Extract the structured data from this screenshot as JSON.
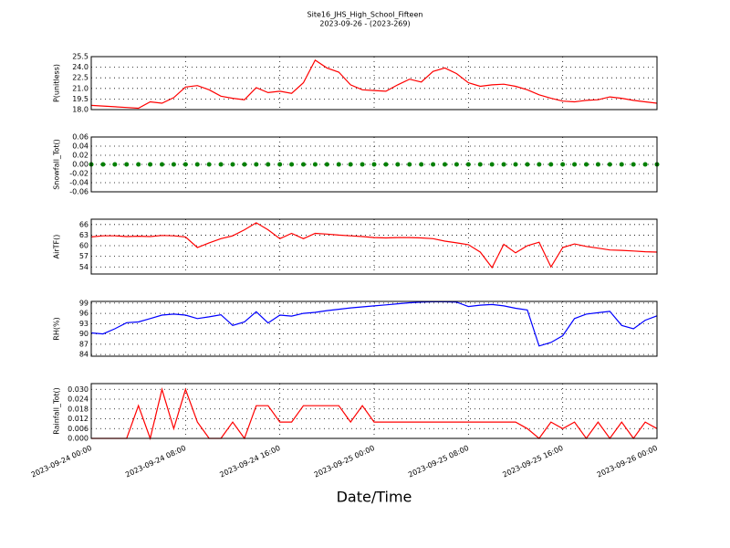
{
  "chart_data": [
    {
      "type": "line",
      "title": "Site16_JHS_High_School_Fifteen",
      "subtitle": "2023-09-26 - (2023-269)",
      "ylabel": "P(unitless)",
      "color": "#ff0000",
      "grid": true,
      "xlim": [
        "2023-09-24 00:00",
        "2023-09-26 00:00"
      ],
      "x": [
        "2023-09-24 00:00",
        "2023-09-24 01:00",
        "2023-09-24 02:00",
        "2023-09-24 03:00",
        "2023-09-24 04:00",
        "2023-09-24 05:00",
        "2023-09-24 06:00",
        "2023-09-24 07:00",
        "2023-09-24 08:00",
        "2023-09-24 09:00",
        "2023-09-24 10:00",
        "2023-09-24 11:00",
        "2023-09-24 12:00",
        "2023-09-24 13:00",
        "2023-09-24 14:00",
        "2023-09-24 15:00",
        "2023-09-24 16:00",
        "2023-09-24 17:00",
        "2023-09-24 18:00",
        "2023-09-24 19:00",
        "2023-09-24 20:00",
        "2023-09-24 21:00",
        "2023-09-24 22:00",
        "2023-09-24 23:00",
        "2023-09-25 00:00",
        "2023-09-25 01:00",
        "2023-09-25 02:00",
        "2023-09-25 03:00",
        "2023-09-25 04:00",
        "2023-09-25 05:00",
        "2023-09-25 06:00",
        "2023-09-25 07:00",
        "2023-09-25 08:00",
        "2023-09-25 09:00",
        "2023-09-25 10:00",
        "2023-09-25 11:00",
        "2023-09-25 12:00",
        "2023-09-25 13:00",
        "2023-09-25 14:00",
        "2023-09-25 15:00",
        "2023-09-25 16:00",
        "2023-09-25 17:00",
        "2023-09-25 18:00",
        "2023-09-25 19:00",
        "2023-09-25 20:00",
        "2023-09-25 21:00",
        "2023-09-25 22:00",
        "2023-09-25 23:00",
        "2023-09-26 00:00"
      ],
      "values": [
        18.6,
        18.5,
        18.4,
        18.3,
        18.2,
        19.1,
        18.9,
        19.7,
        21.2,
        21.4,
        20.8,
        19.9,
        19.6,
        19.4,
        21.1,
        20.4,
        20.6,
        20.3,
        21.8,
        25.0,
        23.9,
        23.3,
        21.5,
        20.8,
        20.7,
        20.6,
        21.5,
        22.3,
        21.9,
        23.4,
        23.9,
        23.1,
        21.8,
        21.3,
        21.5,
        21.6,
        21.3,
        20.8,
        20.1,
        19.6,
        19.2,
        19.1,
        19.3,
        19.4,
        19.8,
        19.6,
        19.3,
        19.1,
        18.9
      ],
      "ylim": [
        18.0,
        25.5
      ],
      "yticks": [
        {
          "value": 18.0,
          "label": "18.0"
        },
        19.5,
        {
          "value": 21.0,
          "label": "21.0"
        },
        22.5,
        {
          "value": 24.0,
          "label": "24.0"
        },
        25.5
      ]
    },
    {
      "type": "scatter",
      "ylabel": "Snowfall_Tot()",
      "color": "#008000",
      "grid": true,
      "xlim": [
        "2023-09-24 00:00",
        "2023-09-26 00:00"
      ],
      "x": [
        "2023-09-24 00:00",
        "2023-09-24 01:00",
        "2023-09-24 02:00",
        "2023-09-24 03:00",
        "2023-09-24 04:00",
        "2023-09-24 05:00",
        "2023-09-24 06:00",
        "2023-09-24 07:00",
        "2023-09-24 08:00",
        "2023-09-24 09:00",
        "2023-09-24 10:00",
        "2023-09-24 11:00",
        "2023-09-24 12:00",
        "2023-09-24 13:00",
        "2023-09-24 14:00",
        "2023-09-24 15:00",
        "2023-09-24 16:00",
        "2023-09-24 17:00",
        "2023-09-24 18:00",
        "2023-09-24 19:00",
        "2023-09-24 20:00",
        "2023-09-24 21:00",
        "2023-09-24 22:00",
        "2023-09-24 23:00",
        "2023-09-25 00:00",
        "2023-09-25 01:00",
        "2023-09-25 02:00",
        "2023-09-25 03:00",
        "2023-09-25 04:00",
        "2023-09-25 05:00",
        "2023-09-25 06:00",
        "2023-09-25 07:00",
        "2023-09-25 08:00",
        "2023-09-25 09:00",
        "2023-09-25 10:00",
        "2023-09-25 11:00",
        "2023-09-25 12:00",
        "2023-09-25 13:00",
        "2023-09-25 14:00",
        "2023-09-25 15:00",
        "2023-09-25 16:00",
        "2023-09-25 17:00",
        "2023-09-25 18:00",
        "2023-09-25 19:00",
        "2023-09-25 20:00",
        "2023-09-25 21:00",
        "2023-09-25 22:00",
        "2023-09-25 23:00",
        "2023-09-26 00:00"
      ],
      "values": [
        0,
        0,
        0,
        0,
        0,
        0,
        0,
        0,
        0,
        0,
        0,
        0,
        0,
        0,
        0,
        0,
        0,
        0,
        0,
        0,
        0,
        0,
        0,
        0,
        0,
        0,
        0,
        0,
        0,
        0,
        0,
        0,
        0,
        0,
        0,
        0,
        0,
        0,
        0,
        0,
        0,
        0,
        0,
        0,
        0,
        0,
        0,
        0,
        0
      ],
      "ylim": [
        -0.06,
        0.06
      ],
      "yticks": [
        -0.06,
        -0.04,
        -0.02,
        {
          "value": 0,
          "label": "0.00"
        },
        0.02,
        0.04,
        0.06
      ]
    },
    {
      "type": "line",
      "ylabel": "AirTF()",
      "color": "#ff0000",
      "grid": true,
      "xlim": [
        "2023-09-24 00:00",
        "2023-09-26 00:00"
      ],
      "x": [
        "2023-09-24 00:00",
        "2023-09-24 01:00",
        "2023-09-24 02:00",
        "2023-09-24 03:00",
        "2023-09-24 04:00",
        "2023-09-24 05:00",
        "2023-09-24 06:00",
        "2023-09-24 07:00",
        "2023-09-24 08:00",
        "2023-09-24 09:00",
        "2023-09-24 10:00",
        "2023-09-24 11:00",
        "2023-09-24 12:00",
        "2023-09-24 13:00",
        "2023-09-24 14:00",
        "2023-09-24 15:00",
        "2023-09-24 16:00",
        "2023-09-24 17:00",
        "2023-09-24 18:00",
        "2023-09-24 19:00",
        "2023-09-24 20:00",
        "2023-09-24 21:00",
        "2023-09-24 22:00",
        "2023-09-24 23:00",
        "2023-09-25 00:00",
        "2023-09-25 01:00",
        "2023-09-25 02:00",
        "2023-09-25 03:00",
        "2023-09-25 04:00",
        "2023-09-25 05:00",
        "2023-09-25 06:00",
        "2023-09-25 07:00",
        "2023-09-25 08:00",
        "2023-09-25 09:00",
        "2023-09-25 10:00",
        "2023-09-25 11:00",
        "2023-09-25 12:00",
        "2023-09-25 13:00",
        "2023-09-25 14:00",
        "2023-09-25 15:00",
        "2023-09-25 16:00",
        "2023-09-25 17:00",
        "2023-09-25 18:00",
        "2023-09-25 19:00",
        "2023-09-25 20:00",
        "2023-09-25 21:00",
        "2023-09-25 22:00",
        "2023-09-25 23:00",
        "2023-09-26 00:00"
      ],
      "values": [
        62.5,
        62.8,
        62.8,
        62.6,
        62.7,
        62.6,
        62.9,
        62.8,
        62.5,
        59.5,
        60.8,
        62.0,
        62.8,
        64.5,
        66.5,
        64.5,
        62.0,
        63.5,
        62.0,
        63.5,
        63.3,
        63.0,
        62.8,
        62.6,
        62.3,
        62.2,
        62.3,
        62.3,
        62.2,
        62.0,
        61.3,
        60.8,
        60.3,
        58.2,
        53.8,
        60.4,
        58.0,
        60.0,
        61.0,
        54.0,
        59.5,
        60.5,
        59.8,
        59.3,
        58.8,
        58.7,
        58.5,
        58.3,
        58.2
      ],
      "ylim": [
        52,
        67.5
      ],
      "yticks": [
        54,
        57,
        60,
        63,
        66
      ]
    },
    {
      "type": "line",
      "ylabel": "RH(%)",
      "color": "#0000ff",
      "grid": true,
      "xlim": [
        "2023-09-24 00:00",
        "2023-09-26 00:00"
      ],
      "x": [
        "2023-09-24 00:00",
        "2023-09-24 01:00",
        "2023-09-24 02:00",
        "2023-09-24 03:00",
        "2023-09-24 04:00",
        "2023-09-24 05:00",
        "2023-09-24 06:00",
        "2023-09-24 07:00",
        "2023-09-24 08:00",
        "2023-09-24 09:00",
        "2023-09-24 10:00",
        "2023-09-24 11:00",
        "2023-09-24 12:00",
        "2023-09-24 13:00",
        "2023-09-24 14:00",
        "2023-09-24 15:00",
        "2023-09-24 16:00",
        "2023-09-24 17:00",
        "2023-09-24 18:00",
        "2023-09-24 19:00",
        "2023-09-24 20:00",
        "2023-09-24 21:00",
        "2023-09-24 22:00",
        "2023-09-24 23:00",
        "2023-09-25 00:00",
        "2023-09-25 01:00",
        "2023-09-25 02:00",
        "2023-09-25 03:00",
        "2023-09-25 04:00",
        "2023-09-25 05:00",
        "2023-09-25 06:00",
        "2023-09-25 07:00",
        "2023-09-25 08:00",
        "2023-09-25 09:00",
        "2023-09-25 10:00",
        "2023-09-25 11:00",
        "2023-09-25 12:00",
        "2023-09-25 13:00",
        "2023-09-25 14:00",
        "2023-09-25 15:00",
        "2023-09-25 16:00",
        "2023-09-25 17:00",
        "2023-09-25 18:00",
        "2023-09-25 19:00",
        "2023-09-25 20:00",
        "2023-09-25 21:00",
        "2023-09-25 22:00",
        "2023-09-25 23:00",
        "2023-09-26 00:00"
      ],
      "values": [
        90.3,
        90.0,
        91.5,
        93.3,
        93.5,
        94.5,
        95.5,
        95.8,
        95.5,
        94.5,
        95.0,
        95.6,
        92.5,
        93.5,
        96.5,
        93.2,
        95.5,
        95.2,
        96.0,
        96.3,
        96.8,
        97.2,
        97.6,
        97.9,
        98.2,
        98.5,
        98.8,
        99.1,
        99.3,
        99.4,
        99.4,
        99.3,
        98.0,
        98.4,
        98.6,
        98.2,
        97.5,
        97.0,
        86.5,
        87.5,
        89.5,
        94.5,
        95.8,
        96.2,
        96.6,
        92.5,
        91.5,
        94.0,
        95.3
      ],
      "ylim": [
        83.5,
        99.5
      ],
      "yticks": [
        84,
        87,
        90,
        93,
        96,
        99
      ]
    },
    {
      "type": "line",
      "ylabel": "Rainfall_Tot()",
      "xlabel": "Date/Time",
      "color": "#ff0000",
      "grid": true,
      "xlim": [
        "2023-09-24 00:00",
        "2023-09-26 00:00"
      ],
      "xticks": [
        "2023-09-24 00:00",
        "2023-09-24 08:00",
        "2023-09-24 16:00",
        "2023-09-25 00:00",
        "2023-09-25 08:00",
        "2023-09-25 16:00",
        "2023-09-26 00:00"
      ],
      "x": [
        "2023-09-24 00:00",
        "2023-09-24 01:00",
        "2023-09-24 02:00",
        "2023-09-24 03:00",
        "2023-09-24 04:00",
        "2023-09-24 05:00",
        "2023-09-24 06:00",
        "2023-09-24 07:00",
        "2023-09-24 08:00",
        "2023-09-24 09:00",
        "2023-09-24 10:00",
        "2023-09-24 11:00",
        "2023-09-24 12:00",
        "2023-09-24 13:00",
        "2023-09-24 14:00",
        "2023-09-24 15:00",
        "2023-09-24 16:00",
        "2023-09-24 17:00",
        "2023-09-24 18:00",
        "2023-09-24 19:00",
        "2023-09-24 20:00",
        "2023-09-24 21:00",
        "2023-09-24 22:00",
        "2023-09-24 23:00",
        "2023-09-25 00:00",
        "2023-09-25 01:00",
        "2023-09-25 02:00",
        "2023-09-25 03:00",
        "2023-09-25 04:00",
        "2023-09-25 05:00",
        "2023-09-25 06:00",
        "2023-09-25 07:00",
        "2023-09-25 08:00",
        "2023-09-25 09:00",
        "2023-09-25 10:00",
        "2023-09-25 11:00",
        "2023-09-25 12:00",
        "2023-09-25 13:00",
        "2023-09-25 14:00",
        "2023-09-25 15:00",
        "2023-09-25 16:00",
        "2023-09-25 17:00",
        "2023-09-25 18:00",
        "2023-09-25 19:00",
        "2023-09-25 20:00",
        "2023-09-25 21:00",
        "2023-09-25 22:00",
        "2023-09-25 23:00",
        "2023-09-26 00:00"
      ],
      "values": [
        0,
        0,
        0,
        0,
        0.02,
        0,
        0.03,
        0.006,
        0.03,
        0.01,
        0,
        0,
        0.01,
        0,
        0.02,
        0.02,
        0.01,
        0.01,
        0.02,
        0.02,
        0.02,
        0.02,
        0.01,
        0.02,
        0.01,
        0.01,
        0.01,
        0.01,
        0.01,
        0.01,
        0.01,
        0.01,
        0.01,
        0.01,
        0.01,
        0.01,
        0.01,
        0.006,
        0,
        0.01,
        0.006,
        0.01,
        0,
        0.01,
        0,
        0.01,
        0,
        0.01,
        0.006
      ],
      "ylim": [
        0,
        0.0335
      ],
      "yticks": [
        {
          "value": 0,
          "label": "0.000"
        },
        0.006,
        0.012,
        0.018,
        0.024,
        {
          "value": 0.03,
          "label": "0.030"
        }
      ]
    }
  ]
}
